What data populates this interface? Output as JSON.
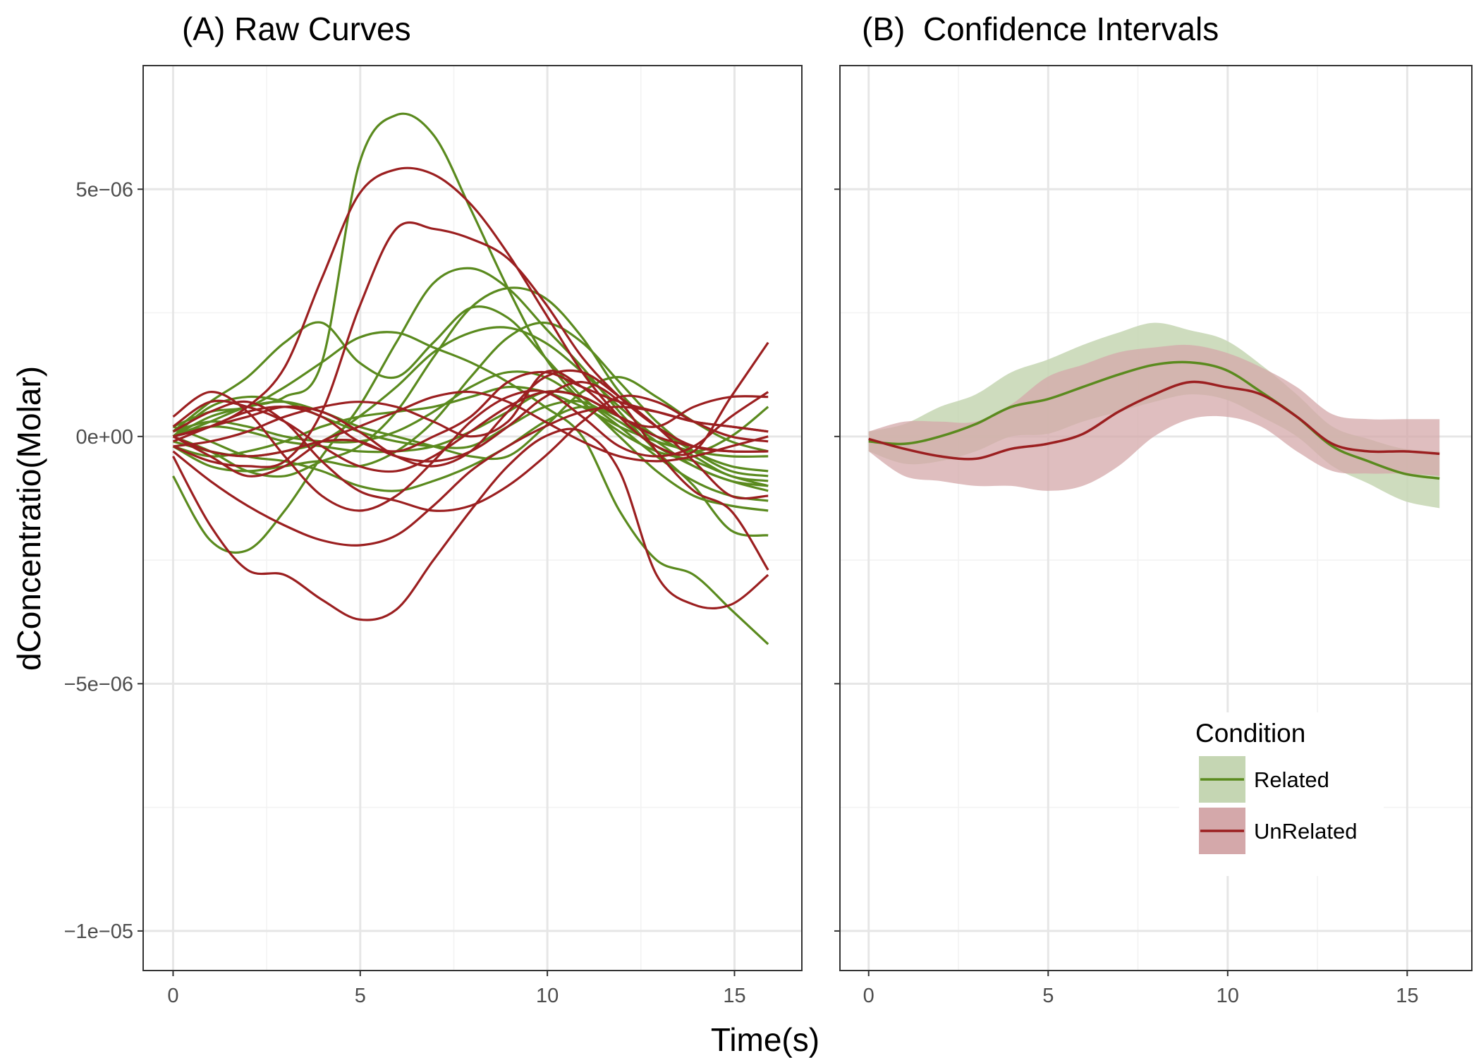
{
  "chart_data": [
    {
      "type": "line",
      "title": "(A) Raw Curves",
      "xlabel": "Time(s)",
      "ylabel": "dConcentratio(Molar)",
      "xlim": [
        -0.8,
        16.8
      ],
      "ylim": [
        -1.08e-05,
        7.5e-06
      ],
      "x_ticks": [
        0,
        5,
        10,
        15
      ],
      "x_tick_labels": [
        "0",
        "5",
        "10",
        "15"
      ],
      "y_ticks": [
        5e-06,
        0,
        -5e-06,
        -1e-05
      ],
      "y_tick_labels": [
        "5e−06",
        "0e+00",
        "−5e−06",
        "−1e−05"
      ],
      "grid": true,
      "x": [
        0,
        1,
        2,
        3,
        4,
        5,
        6,
        7,
        8,
        9,
        10,
        11,
        12,
        13,
        14,
        15,
        16
      ],
      "colors": {
        "Related": "#5a8a1e",
        "UnRelated": "#9b1f20"
      },
      "series": [
        {
          "group": "Related",
          "values": [
            0.0,
            4e-07,
            6e-07,
            8e-07,
            1.5e-06,
            5.5e-06,
            6.5e-06,
            6.1e-06,
            4.6e-06,
            3e-06,
            1.6e-06,
            7e-07,
            1e-07,
            -3e-07,
            -5e-07,
            -8e-07,
            -1e-06
          ]
        },
        {
          "group": "Related",
          "values": [
            -8e-07,
            -2.1e-06,
            -2.3e-06,
            -1.5e-06,
            -4e-07,
            6e-07,
            1.9e-06,
            3.1e-06,
            3.4e-06,
            3e-06,
            2.2e-06,
            1.4e-06,
            5e-07,
            -3e-07,
            -1e-06,
            -1.9e-06,
            -2e-06
          ]
        },
        {
          "group": "Related",
          "values": [
            1e-07,
            7e-07,
            1.2e-06,
            1.9e-06,
            2.3e-06,
            1.5e-06,
            1.2e-06,
            1.9e-06,
            2.6e-06,
            2.4e-06,
            1.6e-06,
            8e-07,
            2e-07,
            -4e-07,
            -9e-07,
            -1.2e-06,
            -1.3e-06
          ]
        },
        {
          "group": "Related",
          "values": [
            2e-07,
            5e-07,
            6e-07,
            1e-06,
            1.5e-06,
            2e-06,
            2.1e-06,
            1.8e-06,
            1.5e-06,
            1.1e-06,
            6e-07,
            0.0,
            -1.5e-06,
            -2.5e-06,
            -2.8e-06,
            -3.5e-06,
            -4.2e-06
          ]
        },
        {
          "group": "Related",
          "values": [
            0.0,
            -3e-07,
            -7e-07,
            -8e-07,
            -5e-07,
            -2e-07,
            5e-07,
            1.6e-06,
            2.6e-06,
            3e-06,
            2.8e-06,
            2e-06,
            9e-07,
            2e-07,
            -3e-07,
            -6e-07,
            -7e-07
          ]
        },
        {
          "group": "Related",
          "values": [
            -2e-07,
            -6e-07,
            -7e-07,
            -6e-07,
            -5e-07,
            -6e-07,
            -3e-07,
            3e-07,
            1.2e-06,
            2e-06,
            2.3e-06,
            1.9e-06,
            1.1e-06,
            3e-07,
            -3e-07,
            -7e-07,
            -8e-07
          ]
        },
        {
          "group": "Related",
          "values": [
            0.0,
            3e-07,
            6e-07,
            7e-07,
            5e-07,
            2e-07,
            0.0,
            -2e-07,
            -4e-07,
            -4e-07,
            2e-07,
            9e-07,
            1.2e-06,
            8e-07,
            3e-07,
            -1e-07,
            -3e-07
          ]
        },
        {
          "group": "Related",
          "values": [
            2e-07,
            -1e-07,
            -4e-07,
            -5e-07,
            -7e-07,
            -1e-06,
            -1.1e-06,
            -9e-07,
            -6e-07,
            -2e-07,
            3e-07,
            6e-07,
            4e-07,
            -1e-07,
            -6e-07,
            -9e-07,
            -1.1e-06
          ]
        },
        {
          "group": "Related",
          "values": [
            0.0,
            2e-07,
            1e-07,
            -1e-07,
            -2e-07,
            -3e-07,
            -3e-07,
            -2e-07,
            1e-07,
            5e-07,
            9e-07,
            8e-07,
            4e-07,
            0.0,
            -4e-07,
            -8e-07,
            -9e-07
          ]
        },
        {
          "group": "Related",
          "values": [
            -1e-07,
            -3e-07,
            -4e-07,
            -3e-07,
            -1e-07,
            4e-07,
            1e-06,
            1.7e-06,
            2.1e-06,
            2.2e-06,
            1.9e-06,
            1.3e-06,
            6e-07,
            0.0,
            -3e-07,
            0.0,
            6e-07
          ]
        },
        {
          "group": "Related",
          "values": [
            0.0,
            6e-07,
            8e-07,
            7e-07,
            4e-07,
            1e-07,
            -1e-07,
            -2e-07,
            -2e-07,
            2e-07,
            6e-07,
            7e-07,
            3e-07,
            -2e-07,
            -6e-07,
            -9e-07,
            -1e-06
          ]
        },
        {
          "group": "Related",
          "values": [
            1e-07,
            3e-07,
            2e-07,
            0.0,
            -1e-07,
            -1e-07,
            1e-07,
            5e-07,
            1e-06,
            1.3e-06,
            1.2e-06,
            7e-07,
            0.0,
            -7e-07,
            -1.2e-06,
            -1.4e-06,
            -1.5e-06
          ]
        },
        {
          "group": "Related",
          "values": [
            -2e-07,
            -4e-07,
            -3e-07,
            -1e-07,
            2e-07,
            4e-07,
            5e-07,
            6e-07,
            8e-07,
            1e-06,
            9e-07,
            6e-07,
            2e-07,
            -1e-07,
            -3e-07,
            -4e-07,
            -4e-07
          ]
        },
        {
          "group": "UnRelated",
          "values": [
            0.0,
            2e-07,
            6e-07,
            1.4e-06,
            3.2e-06,
            4.9e-06,
            5.4e-06,
            5.3e-06,
            4.7e-06,
            3.7e-06,
            2.5e-06,
            1.3e-06,
            4e-07,
            -2e-07,
            -3e-07,
            8e-07,
            1.9e-06
          ]
        },
        {
          "group": "UnRelated",
          "values": [
            -2e-07,
            -5e-07,
            -6e-07,
            -5e-07,
            5e-07,
            2.6e-06,
            4.2e-06,
            4.2e-06,
            4e-06,
            3.6e-06,
            2.7e-06,
            1.6e-06,
            8e-07,
            2e-07,
            -2e-07,
            -3e-07,
            -3e-07
          ]
        },
        {
          "group": "UnRelated",
          "values": [
            4e-07,
            9e-07,
            5e-07,
            -4e-07,
            -1.2e-06,
            -1.5e-06,
            -1.2e-06,
            -5e-07,
            3e-07,
            8e-07,
            9e-07,
            4e-07,
            -2e-07,
            -4e-07,
            -2e-07,
            4e-07,
            9e-07
          ]
        },
        {
          "group": "UnRelated",
          "values": [
            -4e-07,
            -1.8e-06,
            -2.7e-06,
            -2.8e-06,
            -3.3e-06,
            -3.7e-06,
            -3.5e-06,
            -2.5e-06,
            -1.5e-06,
            -6e-07,
            0.0,
            1e-07,
            -7e-07,
            -2.8e-06,
            -3.4e-06,
            -3.4e-06,
            -2.8e-06
          ]
        },
        {
          "group": "UnRelated",
          "values": [
            0.0,
            -3e-07,
            -4e-07,
            -3e-07,
            -1e-07,
            -1e-07,
            -4e-07,
            -5e-07,
            -3e-07,
            2e-07,
            8e-07,
            1.1e-06,
            7e-07,
            -3e-07,
            -1.1e-06,
            -1.5e-06,
            -2.7e-06
          ]
        },
        {
          "group": "UnRelated",
          "values": [
            0.0,
            2e-07,
            4e-07,
            6e-07,
            5e-07,
            1e-07,
            -4e-07,
            -6e-07,
            -3e-07,
            5e-07,
            1.2e-06,
            1.3e-06,
            8e-07,
            2e-07,
            -5e-07,
            -1.2e-06,
            -1.2e-06
          ]
        },
        {
          "group": "UnRelated",
          "values": [
            -2e-07,
            -1e-07,
            1e-07,
            4e-07,
            6e-07,
            7e-07,
            6e-07,
            3e-07,
            0.0,
            3e-07,
            1.3e-06,
            1e-06,
            4e-07,
            2e-07,
            6e-07,
            8e-07,
            8e-07
          ]
        },
        {
          "group": "UnRelated",
          "values": [
            1e-07,
            5e-07,
            7e-07,
            3e-07,
            -5e-07,
            -1.1e-06,
            -1.3e-06,
            -1.5e-06,
            -1.4e-06,
            -1e-06,
            -4e-07,
            3e-07,
            8e-07,
            7e-07,
            3e-07,
            0.0,
            -1e-07
          ]
        },
        {
          "group": "UnRelated",
          "values": [
            -1e-07,
            2e-07,
            5e-07,
            6e-07,
            4e-07,
            -1e-07,
            -3e-07,
            0.0,
            4e-07,
            1.1e-06,
            1.3e-06,
            1e-06,
            7e-07,
            5e-07,
            3e-07,
            2e-07,
            1e-07
          ]
        },
        {
          "group": "UnRelated",
          "values": [
            -3e-07,
            -9e-07,
            -1.4e-06,
            -1.8e-06,
            -2.1e-06,
            -2.2e-06,
            -2e-06,
            -1.4e-06,
            -7e-07,
            -2e-07,
            2e-07,
            5e-07,
            6e-07,
            5e-07,
            3e-07,
            2e-07,
            1e-07
          ]
        },
        {
          "group": "UnRelated",
          "values": [
            2e-07,
            7e-07,
            6e-07,
            3e-07,
            -2e-07,
            -6e-07,
            -7e-07,
            -4e-07,
            1e-07,
            6e-07,
            9e-07,
            8e-07,
            4e-07,
            0.0,
            -2e-07,
            -3e-07,
            -3e-07
          ]
        },
        {
          "group": "UnRelated",
          "values": [
            0.0,
            -4e-07,
            -8e-07,
            -6e-07,
            -1e-07,
            2e-07,
            5e-07,
            8e-07,
            9e-07,
            7e-07,
            3e-07,
            -1e-07,
            -4e-07,
            -5e-07,
            -4e-07,
            -2e-07,
            0.0
          ]
        }
      ]
    },
    {
      "type": "area",
      "title": "(B)  Confidence Intervals",
      "xlabel": "Time(s)",
      "ylim": [
        -1.08e-05,
        7.5e-06
      ],
      "xlim": [
        -0.8,
        16.8
      ],
      "x_ticks": [
        0,
        5,
        10,
        15
      ],
      "x_tick_labels": [
        "0",
        "5",
        "10",
        "15"
      ],
      "grid": true,
      "x": [
        0,
        1,
        2,
        3,
        4,
        5,
        6,
        7,
        8,
        9,
        10,
        11,
        12,
        13,
        14,
        15,
        16
      ],
      "series": [
        {
          "name": "Related",
          "color": "#5a8a1e",
          "fill": "#c5d6b3",
          "mean": [
            -1e-07,
            -1.5e-07,
            0.0,
            2.5e-07,
            6e-07,
            7.5e-07,
            1e-06,
            1.25e-06,
            1.45e-06,
            1.5e-06,
            1.35e-06,
            9e-07,
            4e-07,
            -2e-07,
            -5e-07,
            -7.5e-07,
            -8.5e-07
          ],
          "lower": [
            -3e-07,
            -5.5e-07,
            -5e-07,
            -3e-07,
            0.0,
            5e-08,
            3e-07,
            5e-07,
            7e-07,
            8.5e-07,
            7.5e-07,
            4e-07,
            0.0,
            -6e-07,
            -9.5e-07,
            -1.3e-06,
            -1.45e-06
          ],
          "upper": [
            1e-07,
            2.5e-07,
            6e-07,
            8.5e-07,
            1.3e-06,
            1.55e-06,
            1.85e-06,
            2.1e-06,
            2.3e-06,
            2.15e-06,
            1.95e-06,
            1.45e-06,
            8.5e-07,
            2e-07,
            -5e-08,
            -2.5e-07,
            -3e-07
          ]
        },
        {
          "name": "UnRelated",
          "color": "#9b1f20",
          "fill": "#d4a8aa",
          "mean": [
            -5e-08,
            -2.5e-07,
            -4e-07,
            -4.5e-07,
            -2.5e-07,
            -1.5e-07,
            5e-08,
            5e-07,
            8.5e-07,
            1.1e-06,
            1e-06,
            8.5e-07,
            4e-07,
            -1.5e-07,
            -3e-07,
            -3e-07,
            -3.5e-07
          ],
          "lower": [
            -3e-07,
            -8e-07,
            -9e-07,
            -1e-06,
            -1e-06,
            -1.1e-06,
            -1e-06,
            -6e-07,
            0.0,
            3.5e-07,
            4e-07,
            2e-07,
            -3e-07,
            -7e-07,
            -7.5e-07,
            -7.5e-07,
            -8e-07
          ],
          "upper": [
            1e-07,
            3e-07,
            3e-07,
            3e-07,
            6.5e-07,
            1.2e-06,
            1.45e-06,
            1.7e-06,
            1.8e-06,
            1.85e-06,
            1.7e-06,
            1.4e-06,
            1e-06,
            4.5e-07,
            3.5e-07,
            3.5e-07,
            3.5e-07
          ]
        }
      ],
      "legend": {
        "title": "Condition",
        "position": "bottom-right",
        "entries": [
          {
            "label": "Related",
            "color": "#5a8a1e",
            "fill": "#c5d6b3"
          },
          {
            "label": "UnRelated",
            "color": "#9b1f20",
            "fill": "#d4a8aa"
          }
        ]
      }
    }
  ]
}
